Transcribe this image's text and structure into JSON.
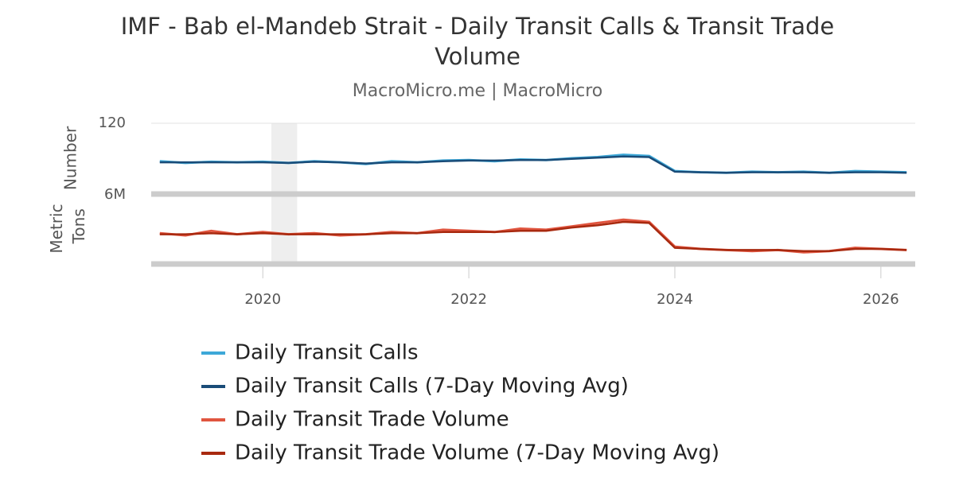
{
  "chart_data": {
    "type": "line",
    "title": "IMF - Bab el-Mandeb Strait - Daily Transit Calls & Transit Trade Volume",
    "subtitle": "MacroMicro.me | MacroMicro",
    "ylabel": "Number",
    "y2label": "Metric Tons",
    "x": [
      "2019-01",
      "2019-04",
      "2019-07",
      "2019-10",
      "2020-01",
      "2020-04",
      "2020-07",
      "2020-10",
      "2021-01",
      "2021-04",
      "2021-07",
      "2021-10",
      "2022-01",
      "2022-04",
      "2022-07",
      "2022-10",
      "2023-01",
      "2023-04",
      "2023-07",
      "2023-10",
      "2024-01",
      "2024-04",
      "2024-07",
      "2024-10",
      "2025-01",
      "2025-04",
      "2025-07",
      "2025-10",
      "2026-01",
      "2026-04"
    ],
    "xlim": [
      "2018-12",
      "2026-05"
    ],
    "xticks": [
      {
        "value": "2020-01",
        "label": "2020"
      },
      {
        "value": "2022-01",
        "label": "2022"
      },
      {
        "value": "2024-01",
        "label": "2024"
      },
      {
        "value": "2026-01",
        "label": "2026"
      }
    ],
    "ylim": [
      0,
      120
    ],
    "yticks": [
      120
    ],
    "y2lim": [
      0,
      6000000
    ],
    "y2ticks": [
      {
        "value": 6000000,
        "label": "6M"
      }
    ],
    "shaded_x": [
      "2020-02",
      "2020-05"
    ],
    "grid": true,
    "legend": "bottom",
    "series": [
      {
        "name": "Daily Transit Calls",
        "color": "#3da8d8",
        "values": [
          55,
          52,
          54,
          53,
          54,
          52,
          55,
          53,
          50,
          55,
          53,
          56,
          57,
          55,
          58,
          57,
          60,
          62,
          66,
          64,
          38,
          36,
          35,
          37,
          36,
          37,
          35,
          38,
          37,
          36
        ]
      },
      {
        "name": "Daily Transit Calls (7-Day Moving Avg)",
        "color": "#1a4c78",
        "values": [
          53,
          53,
          53,
          53,
          53,
          52,
          54,
          53,
          51,
          53,
          53,
          55,
          56,
          56,
          57,
          57,
          59,
          61,
          63,
          62,
          37,
          36,
          35,
          36,
          36,
          36,
          35,
          36,
          36,
          35
        ]
      },
      {
        "name": "Daily Transit Trade Volume",
        "color": "#e0553f",
        "axis": "y2",
        "values": [
          2600000,
          2400000,
          2800000,
          2500000,
          2700000,
          2500000,
          2600000,
          2400000,
          2500000,
          2700000,
          2600000,
          2900000,
          2800000,
          2700000,
          3000000,
          2900000,
          3200000,
          3500000,
          3800000,
          3600000,
          1400000,
          1200000,
          1100000,
          1000000,
          1100000,
          900000,
          1000000,
          1300000,
          1200000,
          1100000
        ]
      },
      {
        "name": "Daily Transit Trade Volume (7-Day Moving Avg)",
        "color": "#a8290f",
        "axis": "y2",
        "values": [
          2500000,
          2500000,
          2600000,
          2500000,
          2600000,
          2500000,
          2500000,
          2500000,
          2500000,
          2600000,
          2600000,
          2700000,
          2700000,
          2700000,
          2800000,
          2800000,
          3100000,
          3300000,
          3600000,
          3500000,
          1300000,
          1200000,
          1100000,
          1100000,
          1100000,
          1000000,
          1000000,
          1200000,
          1200000,
          1100000
        ]
      }
    ]
  }
}
